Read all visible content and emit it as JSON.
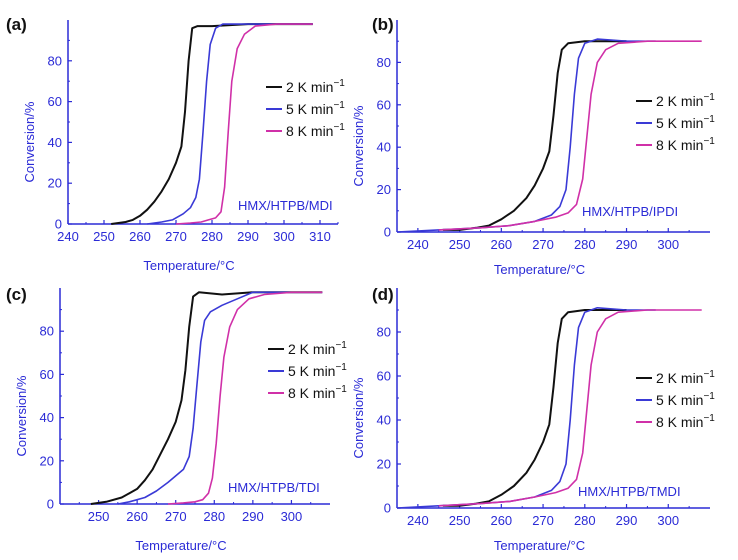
{
  "chart_data": [
    {
      "panel": "(a)",
      "type": "line",
      "annotation": "HMX/HTPB/MDI",
      "xlabel": "Temperature/°C",
      "ylabel": "Conversion/%",
      "xlim": [
        240,
        315
      ],
      "ylim": [
        0,
        100
      ],
      "xticks": [
        240,
        250,
        260,
        270,
        280,
        290,
        300,
        310
      ],
      "yticks": [
        0,
        20,
        40,
        60,
        80
      ],
      "legend_position": "right",
      "series": [
        {
          "name": "2 K min",
          "sup": "−1",
          "color": "#111111",
          "points": [
            [
              252,
              0
            ],
            [
              256,
              1
            ],
            [
              258,
              2
            ],
            [
              260,
              4
            ],
            [
              262,
              7
            ],
            [
              264,
              11
            ],
            [
              266,
              16
            ],
            [
              268,
              22
            ],
            [
              270,
              30
            ],
            [
              271.5,
              38
            ],
            [
              272.5,
              55
            ],
            [
              273.5,
              80
            ],
            [
              274.5,
              96
            ],
            [
              276,
              97
            ],
            [
              280,
              97
            ],
            [
              290,
              98
            ],
            [
              300,
              98
            ],
            [
              308,
              98
            ]
          ]
        },
        {
          "name": "5 K min",
          "sup": "−1",
          "color": "#3a3ad6",
          "points": [
            [
              262,
              0
            ],
            [
              266,
              1
            ],
            [
              269,
              2
            ],
            [
              272,
              5
            ],
            [
              274,
              8
            ],
            [
              275.5,
              13
            ],
            [
              276.5,
              22
            ],
            [
              277.5,
              45
            ],
            [
              278.5,
              70
            ],
            [
              279.5,
              88
            ],
            [
              281,
              96
            ],
            [
              283,
              98
            ],
            [
              290,
              98
            ],
            [
              300,
              98
            ],
            [
              308,
              98
            ]
          ]
        },
        {
          "name": "8 K min",
          "sup": "−1",
          "color": "#d030a8",
          "points": [
            [
              270,
              0
            ],
            [
              274,
              0.5
            ],
            [
              277,
              1
            ],
            [
              279,
              2
            ],
            [
              281,
              3
            ],
            [
              282.5,
              6
            ],
            [
              283.5,
              18
            ],
            [
              284.5,
              45
            ],
            [
              285.5,
              70
            ],
            [
              287,
              86
            ],
            [
              289,
              93
            ],
            [
              292,
              97
            ],
            [
              298,
              98
            ],
            [
              308,
              98
            ]
          ]
        }
      ]
    },
    {
      "panel": "(b)",
      "type": "line",
      "annotation": "HMX/HTPB/IPDI",
      "xlabel": "Temperature/°C",
      "ylabel": "Conversion/%",
      "xlim": [
        235,
        310
      ],
      "ylim": [
        0,
        100
      ],
      "xticks": [
        240,
        250,
        260,
        270,
        280,
        290,
        300
      ],
      "yticks": [
        0,
        20,
        40,
        60,
        80
      ],
      "legend_position": "right",
      "series": [
        {
          "name": "2 K min",
          "sup": "−1",
          "color": "#111111",
          "points": [
            [
              246,
              1
            ],
            [
              250,
              1
            ],
            [
              254,
              2
            ],
            [
              257,
              3
            ],
            [
              260,
              6
            ],
            [
              263,
              10
            ],
            [
              266,
              16
            ],
            [
              268,
              22
            ],
            [
              270,
              30
            ],
            [
              271.5,
              38
            ],
            [
              272.5,
              55
            ],
            [
              273.5,
              75
            ],
            [
              274.5,
              86
            ],
            [
              276,
              89
            ],
            [
              280,
              90
            ],
            [
              285,
              90
            ],
            [
              290,
              90
            ]
          ]
        },
        {
          "name": "5 K min",
          "sup": "−1",
          "color": "#3a3ad6",
          "points": [
            [
              235,
              0
            ],
            [
              245,
              1
            ],
            [
              255,
              2
            ],
            [
              262,
              3
            ],
            [
              268,
              5
            ],
            [
              272,
              8
            ],
            [
              274,
              12
            ],
            [
              275.5,
              20
            ],
            [
              276.5,
              40
            ],
            [
              277.5,
              65
            ],
            [
              278.5,
              82
            ],
            [
              280,
              89
            ],
            [
              283,
              91
            ],
            [
              290,
              90
            ],
            [
              297,
              90
            ]
          ]
        },
        {
          "name": "8 K min",
          "sup": "−1",
          "color": "#d030a8",
          "points": [
            [
              245,
              1
            ],
            [
              255,
              2
            ],
            [
              262,
              3
            ],
            [
              268,
              5
            ],
            [
              273,
              7
            ],
            [
              276,
              9
            ],
            [
              278,
              13
            ],
            [
              279.5,
              25
            ],
            [
              280.5,
              45
            ],
            [
              281.5,
              65
            ],
            [
              283,
              80
            ],
            [
              285,
              86
            ],
            [
              288,
              89
            ],
            [
              295,
              90
            ],
            [
              305,
              90
            ],
            [
              308,
              90
            ]
          ]
        }
      ]
    },
    {
      "panel": "(c)",
      "type": "line",
      "annotation": "HMX/HTPB/TDI",
      "xlabel": "Temperature/°C",
      "ylabel": "Conversion/%",
      "xlim": [
        240,
        310
      ],
      "ylim": [
        0,
        100
      ],
      "xticks": [
        250,
        260,
        270,
        280,
        290,
        300
      ],
      "yticks": [
        0,
        20,
        40,
        60,
        80
      ],
      "legend_position": "right",
      "series": [
        {
          "name": "2 K min",
          "sup": "−1",
          "color": "#111111",
          "points": [
            [
              248,
              0
            ],
            [
              252,
              1
            ],
            [
              256,
              3
            ],
            [
              258,
              5
            ],
            [
              260,
              7
            ],
            [
              262,
              11
            ],
            [
              264,
              16
            ],
            [
              266,
              23
            ],
            [
              268,
              30
            ],
            [
              270,
              38
            ],
            [
              271.5,
              48
            ],
            [
              272.5,
              62
            ],
            [
              273.5,
              82
            ],
            [
              274.5,
              96
            ],
            [
              276,
              98
            ],
            [
              282,
              97
            ],
            [
              290,
              98
            ],
            [
              300,
              98
            ],
            [
              308,
              98
            ]
          ]
        },
        {
          "name": "5 K min",
          "sup": "−1",
          "color": "#3a3ad6",
          "points": [
            [
              255,
              0
            ],
            [
              258,
              1
            ],
            [
              262,
              3
            ],
            [
              265,
              6
            ],
            [
              268,
              10
            ],
            [
              270,
              13
            ],
            [
              272,
              16
            ],
            [
              273.5,
              22
            ],
            [
              274.5,
              35
            ],
            [
              275.5,
              55
            ],
            [
              276.5,
              75
            ],
            [
              277.5,
              85
            ],
            [
              279,
              89
            ],
            [
              282,
              92
            ],
            [
              286,
              95
            ],
            [
              290,
              98
            ],
            [
              300,
              98
            ],
            [
              308,
              98
            ]
          ]
        },
        {
          "name": "8 K min",
          "sup": "−1",
          "color": "#d030a8",
          "points": [
            [
              268,
              0
            ],
            [
              272,
              0.5
            ],
            [
              275,
              1
            ],
            [
              277,
              2
            ],
            [
              278.5,
              5
            ],
            [
              279.5,
              12
            ],
            [
              280.5,
              28
            ],
            [
              281.5,
              50
            ],
            [
              282.5,
              68
            ],
            [
              284,
              82
            ],
            [
              286,
              90
            ],
            [
              289,
              95
            ],
            [
              293,
              97
            ],
            [
              300,
              98
            ],
            [
              308,
              98
            ]
          ]
        }
      ]
    },
    {
      "panel": "(d)",
      "type": "line",
      "annotation": "HMX/HTPB/TMDI",
      "xlabel": "Temperature/°C",
      "ylabel": "Conversion/%",
      "xlim": [
        235,
        310
      ],
      "ylim": [
        0,
        100
      ],
      "xticks": [
        240,
        250,
        260,
        270,
        280,
        290,
        300
      ],
      "yticks": [
        0,
        20,
        40,
        60,
        80
      ],
      "legend_position": "right",
      "series": [
        {
          "name": "2 K min",
          "sup": "−1",
          "color": "#111111",
          "points": [
            [
              246,
              1
            ],
            [
              250,
              1
            ],
            [
              254,
              2
            ],
            [
              257,
              3
            ],
            [
              260,
              6
            ],
            [
              263,
              10
            ],
            [
              266,
              16
            ],
            [
              268,
              22
            ],
            [
              270,
              30
            ],
            [
              271.5,
              38
            ],
            [
              272.5,
              55
            ],
            [
              273.5,
              75
            ],
            [
              274.5,
              86
            ],
            [
              276,
              89
            ],
            [
              280,
              90
            ],
            [
              285,
              90
            ],
            [
              290,
              90
            ]
          ]
        },
        {
          "name": "5 K min",
          "sup": "−1",
          "color": "#3a3ad6",
          "points": [
            [
              235,
              0
            ],
            [
              245,
              1
            ],
            [
              255,
              2
            ],
            [
              262,
              3
            ],
            [
              268,
              5
            ],
            [
              272,
              8
            ],
            [
              274,
              12
            ],
            [
              275.5,
              20
            ],
            [
              276.5,
              40
            ],
            [
              277.5,
              65
            ],
            [
              278.5,
              82
            ],
            [
              280,
              89
            ],
            [
              283,
              91
            ],
            [
              290,
              90
            ],
            [
              297,
              90
            ]
          ]
        },
        {
          "name": "8 K min",
          "sup": "−1",
          "color": "#d030a8",
          "points": [
            [
              245,
              1
            ],
            [
              255,
              2
            ],
            [
              262,
              3
            ],
            [
              268,
              5
            ],
            [
              273,
              7
            ],
            [
              276,
              9
            ],
            [
              278,
              13
            ],
            [
              279.5,
              25
            ],
            [
              280.5,
              45
            ],
            [
              281.5,
              65
            ],
            [
              283,
              80
            ],
            [
              285,
              86
            ],
            [
              288,
              89
            ],
            [
              295,
              90
            ],
            [
              305,
              90
            ],
            [
              308,
              90
            ]
          ]
        }
      ]
    }
  ]
}
